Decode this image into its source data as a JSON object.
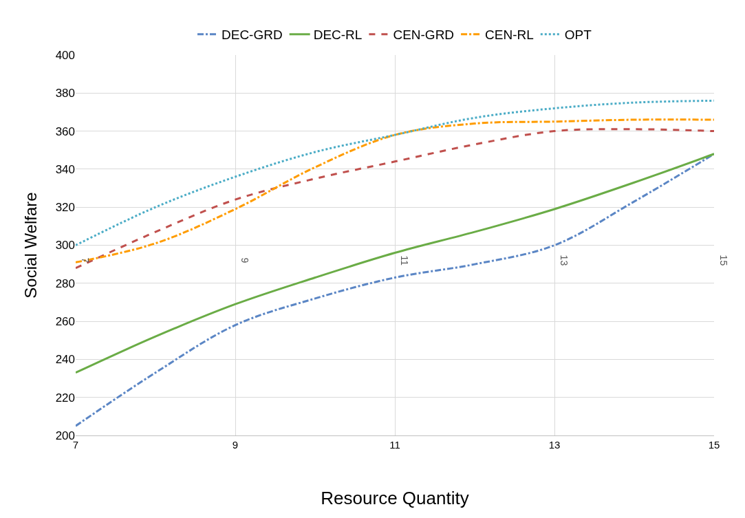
{
  "chart_data": {
    "type": "line",
    "xlabel": "Resource Quantity",
    "ylabel": "Social Welfare",
    "x": [
      7,
      8,
      9,
      10,
      11,
      12,
      13,
      14,
      15
    ],
    "series": [
      {
        "name": "DEC-GRD",
        "color": "#5b86c5",
        "line_style": "dashdot",
        "values": [
          205,
          233,
          258,
          272,
          283,
          290,
          300,
          323,
          348
        ]
      },
      {
        "name": "DEC-RL",
        "color": "#6aac46",
        "line_style": "solid",
        "values": [
          233,
          252,
          269,
          283,
          296,
          307,
          319,
          333,
          348
        ]
      },
      {
        "name": "CEN-GRD",
        "color": "#c0504d",
        "line_style": "dashed",
        "values": [
          288,
          307,
          324,
          335,
          344,
          353,
          360,
          361,
          360
        ]
      },
      {
        "name": "CEN-RL",
        "color": "#ff9c00",
        "line_style": "dashdot",
        "values": [
          291,
          301,
          319,
          341,
          358,
          364,
          365,
          366,
          366
        ]
      },
      {
        "name": "OPT",
        "color": "#4bacc6",
        "line_style": "dotted",
        "values": [
          300,
          320,
          336,
          349,
          358,
          367,
          372,
          375,
          376
        ]
      }
    ],
    "xlim": [
      7,
      15
    ],
    "xticks": [
      7,
      9,
      11,
      13,
      15
    ],
    "ylim": [
      200,
      400
    ],
    "yticks": [
      200,
      220,
      240,
      260,
      280,
      300,
      320,
      340,
      360,
      380,
      400
    ],
    "grid": true,
    "legend": "top",
    "marker": "none",
    "annotations": [
      "7",
      "9",
      "11",
      "13",
      "15"
    ]
  }
}
